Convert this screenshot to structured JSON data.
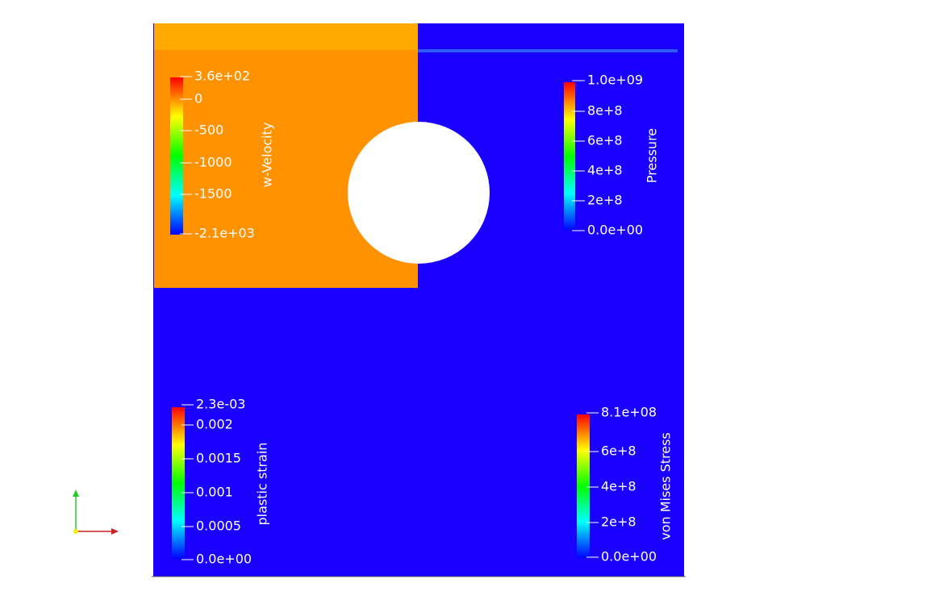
{
  "legends": [
    {
      "title": "w-Velocity",
      "labels": [
        "3.6e+02",
        "0",
        "-500",
        "-1000",
        "-1500",
        "-2.1e+03"
      ]
    },
    {
      "title": "Pressure",
      "labels": [
        "1.0e+09",
        "8e+8",
        "6e+8",
        "4e+8",
        "2e+8",
        "0.0e+00"
      ]
    },
    {
      "title": "plastic strain",
      "labels": [
        "2.3e-03",
        "0.002",
        "0.0015",
        "0.001",
        "0.0005",
        "0.0e+00"
      ]
    },
    {
      "title": "von Mises Stress",
      "labels": [
        "8.1e+08",
        "6e+8",
        "4e+8",
        "2e+8",
        "0.0e+00"
      ]
    }
  ]
}
